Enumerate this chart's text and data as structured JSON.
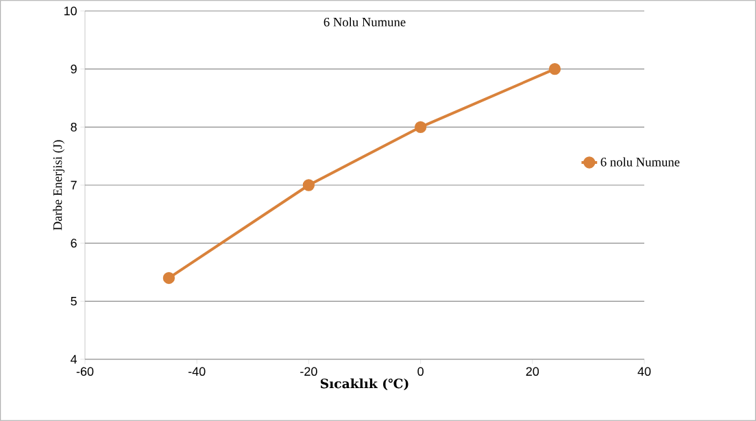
{
  "chart_data": {
    "type": "line",
    "title": "6 Nolu Numune",
    "xlabel": "Sıcaklık (℃)",
    "ylabel": "Darbe Enerjisi (J)",
    "x": [
      -45,
      -20,
      0,
      24
    ],
    "series": [
      {
        "name": "6 nolu Numune",
        "color": "#d9823b",
        "values": [
          5.4,
          7,
          8,
          9
        ]
      }
    ],
    "xlim": [
      -60,
      40
    ],
    "xticks": [
      -60,
      -40,
      -20,
      0,
      20,
      40
    ],
    "ylim": [
      4,
      10
    ],
    "yticks": [
      4,
      5,
      6,
      7,
      8,
      9,
      10
    ],
    "grid": "y",
    "legend": "right",
    "marker": "circle",
    "line_style": "solid"
  }
}
